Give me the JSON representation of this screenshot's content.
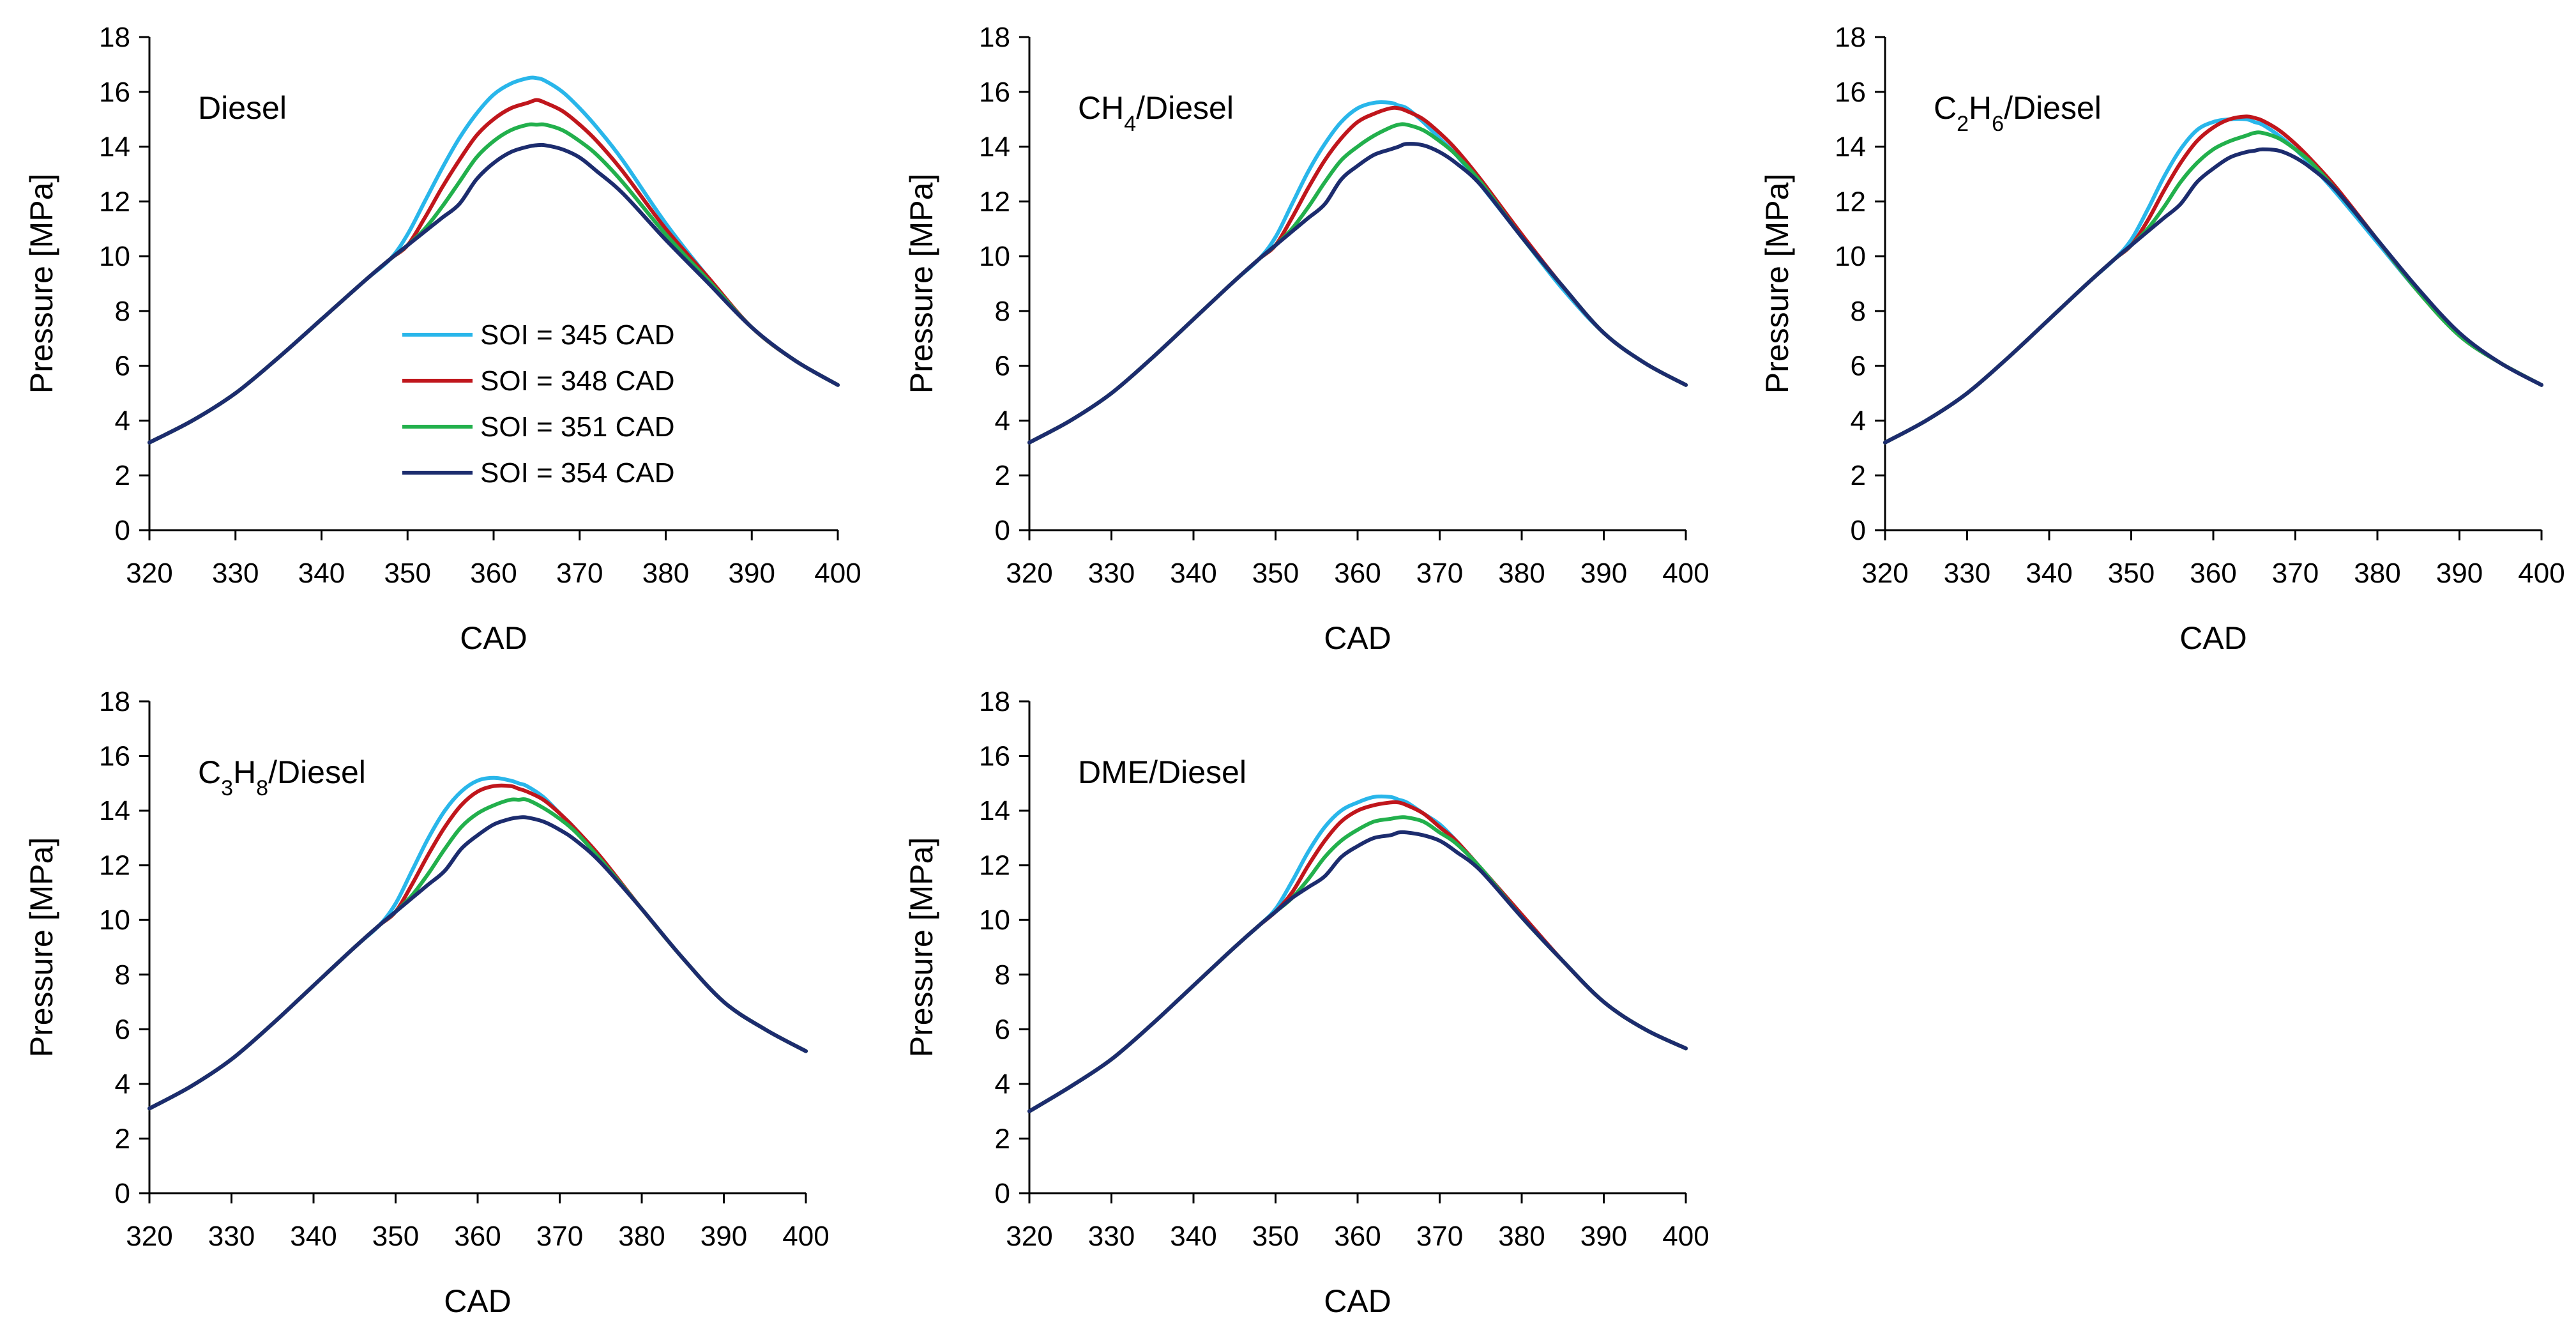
{
  "chart_data": {
    "type": "line",
    "xlim": [
      320,
      400
    ],
    "ylim": [
      0,
      18
    ],
    "xticks": [
      "320",
      "330",
      "340",
      "350",
      "360",
      "370",
      "380",
      "390",
      "400"
    ],
    "yticks": [
      "0",
      "2",
      "4",
      "6",
      "8",
      "10",
      "12",
      "14",
      "16",
      "18"
    ],
    "xlabel": "CAD",
    "ylabel": "Pressure [MPa]",
    "legend": {
      "placement": "inside-first-panel",
      "entries": [
        {
          "label": "SOI = 345 CAD",
          "color": "#29b6ea"
        },
        {
          "label": "SOI = 348 CAD",
          "color": "#c0161c"
        },
        {
          "label": "SOI = 351 CAD",
          "color": "#22b04c"
        },
        {
          "label": "SOI = 354 CAD",
          "color": "#1c2c6e"
        }
      ]
    },
    "x": [
      320,
      325,
      330,
      335,
      340,
      345,
      348,
      350,
      352,
      354,
      356,
      358,
      360,
      362,
      364,
      365,
      366,
      368,
      370,
      372,
      375,
      380,
      385,
      390,
      395,
      400
    ],
    "charts": [
      {
        "annotation": {
          "main": "Diesel",
          "parts": [
            {
              "t": "Diesel",
              "sub": false
            }
          ]
        },
        "series": [
          {
            "name": "SOI = 345 CAD",
            "color": "#29b6ea",
            "values": [
              3.2,
              4.0,
              5.0,
              6.3,
              7.7,
              9.1,
              9.9,
              10.8,
              12.0,
              13.2,
              14.3,
              15.2,
              15.9,
              16.3,
              16.5,
              16.5,
              16.4,
              16.0,
              15.4,
              14.7,
              13.5,
              11.2,
              9.2,
              7.4,
              6.2,
              5.3
            ]
          },
          {
            "name": "SOI = 348 CAD",
            "color": "#c0161c",
            "values": [
              3.2,
              4.0,
              5.0,
              6.3,
              7.7,
              9.1,
              9.9,
              10.4,
              11.4,
              12.5,
              13.5,
              14.4,
              15.0,
              15.4,
              15.6,
              15.7,
              15.6,
              15.3,
              14.8,
              14.2,
              13.1,
              11.0,
              9.2,
              7.4,
              6.2,
              5.3
            ]
          },
          {
            "name": "SOI = 351 CAD",
            "color": "#22b04c",
            "values": [
              3.2,
              4.0,
              5.0,
              6.3,
              7.7,
              9.1,
              9.9,
              10.4,
              11.0,
              11.8,
              12.7,
              13.6,
              14.2,
              14.6,
              14.8,
              14.8,
              14.8,
              14.6,
              14.2,
              13.7,
              12.7,
              10.8,
              9.1,
              7.4,
              6.2,
              5.3
            ]
          },
          {
            "name": "SOI = 354 CAD",
            "color": "#1c2c6e",
            "values": [
              3.2,
              4.0,
              5.0,
              6.3,
              7.7,
              9.1,
              9.9,
              10.4,
              10.9,
              11.4,
              11.9,
              12.8,
              13.4,
              13.8,
              14.0,
              14.05,
              14.05,
              13.9,
              13.6,
              13.1,
              12.3,
              10.6,
              9.0,
              7.4,
              6.2,
              5.3
            ]
          }
        ]
      },
      {
        "annotation": {
          "main": "CH4/Diesel",
          "parts": [
            {
              "t": "CH",
              "sub": false
            },
            {
              "t": "4",
              "sub": true
            },
            {
              "t": "/Diesel",
              "sub": false
            }
          ]
        },
        "series": [
          {
            "name": "SOI = 345 CAD",
            "color": "#29b6ea",
            "values": [
              3.2,
              4.0,
              5.0,
              6.3,
              7.7,
              9.1,
              9.9,
              10.7,
              11.9,
              13.1,
              14.1,
              14.9,
              15.4,
              15.6,
              15.6,
              15.5,
              15.4,
              14.9,
              14.3,
              13.7,
              12.6,
              10.7,
              8.8,
              7.2,
              6.1,
              5.3
            ]
          },
          {
            "name": "SOI = 348 CAD",
            "color": "#c0161c",
            "values": [
              3.2,
              4.0,
              5.0,
              6.3,
              7.7,
              9.1,
              9.9,
              10.4,
              11.4,
              12.5,
              13.5,
              14.3,
              14.9,
              15.2,
              15.4,
              15.4,
              15.3,
              15.0,
              14.5,
              13.9,
              12.8,
              10.8,
              8.9,
              7.2,
              6.1,
              5.3
            ]
          },
          {
            "name": "SOI = 351 CAD",
            "color": "#22b04c",
            "values": [
              3.2,
              4.0,
              5.0,
              6.3,
              7.7,
              9.1,
              9.9,
              10.4,
              11.0,
              11.8,
              12.7,
              13.5,
              14.0,
              14.4,
              14.7,
              14.8,
              14.8,
              14.6,
              14.2,
              13.7,
              12.7,
              10.7,
              8.9,
              7.2,
              6.1,
              5.3
            ]
          },
          {
            "name": "SOI = 354 CAD",
            "color": "#1c2c6e",
            "values": [
              3.2,
              4.0,
              5.0,
              6.3,
              7.7,
              9.1,
              9.9,
              10.4,
              10.9,
              11.4,
              11.9,
              12.8,
              13.3,
              13.7,
              13.9,
              14.0,
              14.1,
              14.05,
              13.8,
              13.4,
              12.6,
              10.7,
              8.9,
              7.2,
              6.1,
              5.3
            ]
          }
        ]
      },
      {
        "annotation": {
          "main": "C2H6/Diesel",
          "parts": [
            {
              "t": "C",
              "sub": false
            },
            {
              "t": "2",
              "sub": true
            },
            {
              "t": "H",
              "sub": false
            },
            {
              "t": "6",
              "sub": true
            },
            {
              "t": "/Diesel",
              "sub": false
            }
          ]
        },
        "series": [
          {
            "name": "SOI = 345 CAD",
            "color": "#29b6ea",
            "values": [
              3.2,
              4.0,
              5.0,
              6.3,
              7.7,
              9.1,
              9.9,
              10.6,
              11.7,
              12.9,
              13.9,
              14.6,
              14.9,
              15.0,
              15.0,
              14.9,
              14.8,
              14.4,
              13.9,
              13.3,
              12.3,
              10.5,
              8.7,
              7.1,
              6.1,
              5.3
            ]
          },
          {
            "name": "SOI = 348 CAD",
            "color": "#c0161c",
            "values": [
              3.2,
              4.0,
              5.0,
              6.3,
              7.7,
              9.1,
              9.9,
              10.4,
              11.3,
              12.4,
              13.4,
              14.2,
              14.7,
              15.0,
              15.1,
              15.05,
              14.95,
              14.6,
              14.1,
              13.5,
              12.5,
              10.6,
              8.7,
              7.1,
              6.1,
              5.3
            ]
          },
          {
            "name": "SOI = 351 CAD",
            "color": "#22b04c",
            "values": [
              3.2,
              4.0,
              5.0,
              6.3,
              7.7,
              9.1,
              9.9,
              10.4,
              11.0,
              11.8,
              12.7,
              13.4,
              13.9,
              14.2,
              14.4,
              14.5,
              14.5,
              14.3,
              13.9,
              13.4,
              12.4,
              10.6,
              8.7,
              7.1,
              6.1,
              5.3
            ]
          },
          {
            "name": "SOI = 354 CAD",
            "color": "#1c2c6e",
            "values": [
              3.2,
              4.0,
              5.0,
              6.3,
              7.7,
              9.1,
              9.9,
              10.4,
              10.9,
              11.4,
              11.9,
              12.7,
              13.2,
              13.6,
              13.8,
              13.85,
              13.9,
              13.85,
              13.6,
              13.2,
              12.4,
              10.6,
              8.8,
              7.2,
              6.1,
              5.3
            ]
          }
        ]
      },
      {
        "annotation": {
          "main": "C3H8/Diesel",
          "parts": [
            {
              "t": "C",
              "sub": false
            },
            {
              "t": "3",
              "sub": true
            },
            {
              "t": "H",
              "sub": false
            },
            {
              "t": "8",
              "sub": true
            },
            {
              "t": "/Diesel",
              "sub": false
            }
          ]
        },
        "series": [
          {
            "name": "SOI = 345 CAD",
            "color": "#29b6ea",
            "values": [
              3.1,
              3.9,
              4.9,
              6.2,
              7.6,
              9.0,
              9.8,
              10.6,
              11.8,
              13.0,
              14.0,
              14.7,
              15.1,
              15.2,
              15.1,
              15.0,
              14.9,
              14.5,
              13.9,
              13.3,
              12.2,
              10.4,
              8.6,
              7.0,
              6.0,
              5.2
            ]
          },
          {
            "name": "SOI = 348 CAD",
            "color": "#c0161c",
            "values": [
              3.1,
              3.9,
              4.9,
              6.2,
              7.6,
              9.0,
              9.8,
              10.3,
              11.3,
              12.4,
              13.4,
              14.2,
              14.7,
              14.9,
              14.9,
              14.8,
              14.7,
              14.4,
              13.9,
              13.3,
              12.3,
              10.4,
              8.6,
              7.0,
              6.0,
              5.2
            ]
          },
          {
            "name": "SOI = 351 CAD",
            "color": "#22b04c",
            "values": [
              3.1,
              3.9,
              4.9,
              6.2,
              7.6,
              9.0,
              9.8,
              10.3,
              10.9,
              11.7,
              12.6,
              13.4,
              13.9,
              14.2,
              14.4,
              14.4,
              14.4,
              14.1,
              13.7,
              13.2,
              12.2,
              10.4,
              8.6,
              7.0,
              6.0,
              5.2
            ]
          },
          {
            "name": "SOI = 354 CAD",
            "color": "#1c2c6e",
            "values": [
              3.1,
              3.9,
              4.9,
              6.2,
              7.6,
              9.0,
              9.8,
              10.3,
              10.8,
              11.3,
              11.8,
              12.6,
              13.1,
              13.5,
              13.7,
              13.75,
              13.75,
              13.6,
              13.3,
              12.9,
              12.1,
              10.4,
              8.6,
              7.0,
              6.0,
              5.2
            ]
          }
        ]
      },
      {
        "annotation": {
          "main": "DME/Diesel",
          "parts": [
            {
              "t": "DME/Diesel",
              "sub": false
            }
          ]
        },
        "series": [
          {
            "name": "SOI = 345 CAD",
            "color": "#29b6ea",
            "values": [
              3.0,
              3.9,
              4.9,
              6.2,
              7.6,
              9.0,
              9.8,
              10.4,
              11.4,
              12.5,
              13.4,
              14.0,
              14.3,
              14.5,
              14.5,
              14.4,
              14.3,
              13.9,
              13.5,
              12.9,
              11.9,
              10.2,
              8.5,
              7.0,
              6.0,
              5.3
            ]
          },
          {
            "name": "SOI = 348 CAD",
            "color": "#c0161c",
            "values": [
              3.0,
              3.9,
              4.9,
              6.2,
              7.6,
              9.0,
              9.8,
              10.3,
              11.0,
              12.0,
              12.9,
              13.6,
              14.0,
              14.2,
              14.3,
              14.3,
              14.2,
              13.9,
              13.4,
              12.9,
              11.9,
              10.2,
              8.5,
              7.0,
              6.0,
              5.3
            ]
          },
          {
            "name": "SOI = 351 CAD",
            "color": "#22b04c",
            "values": [
              3.0,
              3.9,
              4.9,
              6.2,
              7.6,
              9.0,
              9.8,
              10.3,
              10.8,
              11.5,
              12.3,
              12.9,
              13.3,
              13.6,
              13.7,
              13.75,
              13.75,
              13.6,
              13.2,
              12.8,
              11.9,
              10.1,
              8.5,
              7.0,
              6.0,
              5.3
            ]
          },
          {
            "name": "SOI = 354 CAD",
            "color": "#1c2c6e",
            "values": [
              3.0,
              3.9,
              4.9,
              6.2,
              7.6,
              9.0,
              9.8,
              10.3,
              10.8,
              11.2,
              11.6,
              12.3,
              12.7,
              13.0,
              13.1,
              13.2,
              13.2,
              13.1,
              12.9,
              12.5,
              11.8,
              10.1,
              8.5,
              7.0,
              6.0,
              5.3
            ]
          }
        ]
      }
    ]
  }
}
